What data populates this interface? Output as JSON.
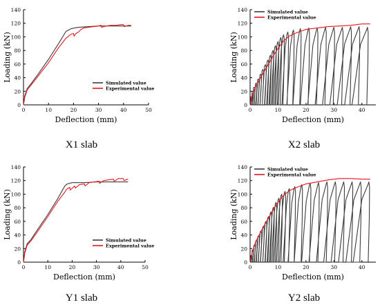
{
  "colors": {
    "simulated": "#3a3a3a",
    "experimental": "#e8141c",
    "axis": "#000000"
  },
  "captions": [
    "X1 slab",
    "X2 slab",
    "Y1 slab",
    "Y2 slab"
  ],
  "chart_data": [
    {
      "type": "line",
      "caption": "X1 slab",
      "xlabel": "Deflection (mm)",
      "ylabel": "Loading (kN)",
      "xlim": [
        0,
        50
      ],
      "ylim": [
        0,
        140
      ],
      "xticks": [
        "0",
        "10",
        "20",
        "30",
        "40",
        "50"
      ],
      "yticks": [
        "0",
        "20",
        "40",
        "60",
        "80",
        "100",
        "120",
        "140"
      ],
      "legend_position": "lower-right",
      "series": [
        {
          "name": "Simulated value",
          "x": [
            0,
            0.5,
            1.5,
            3,
            6,
            10,
            14,
            17,
            19,
            22,
            26,
            30,
            35,
            40,
            43
          ],
          "y": [
            0,
            13,
            24,
            31,
            46,
            67,
            90,
            108,
            112,
            114,
            115,
            116,
            116,
            116,
            116
          ]
        },
        {
          "name": "Experimental value",
          "x": [
            0,
            0.5,
            1.5,
            3,
            6,
            10,
            14,
            17,
            18,
            19,
            20,
            20.2,
            21,
            22,
            23,
            24,
            26,
            28,
            30,
            31,
            31.2,
            33,
            35,
            37,
            39,
            40,
            40.3,
            42,
            43
          ],
          "y": [
            0,
            11,
            22,
            29,
            43,
            62,
            84,
            98,
            101,
            104,
            105,
            101,
            105,
            107,
            111,
            113,
            114,
            115,
            116,
            117,
            114,
            116,
            117,
            117,
            118,
            118,
            115,
            117,
            117
          ]
        }
      ]
    },
    {
      "type": "line",
      "caption": "X2 slab",
      "xlabel": "Deflection (mm)",
      "ylabel": "Loading (kN)",
      "xlim": [
        0,
        45
      ],
      "ylim": [
        0,
        140
      ],
      "xticks": [
        "0",
        "10",
        "20",
        "30",
        "40"
      ],
      "yticks": [
        "0",
        "20",
        "40",
        "60",
        "80",
        "100",
        "120",
        "140"
      ],
      "legend_position": "top-left",
      "series": [
        {
          "name": "Simulated value",
          "cycle_peaks": [
            [
              0.5,
              12
            ],
            [
              1,
              20
            ],
            [
              1.5,
              26
            ],
            [
              2.2,
              32
            ],
            [
              3,
              38
            ],
            [
              3.8,
              45
            ],
            [
              4.6,
              52
            ],
            [
              5.5,
              59
            ],
            [
              6.4,
              66
            ],
            [
              7.3,
              73
            ],
            [
              8.2,
              80
            ],
            [
              9.1,
              87
            ],
            [
              10,
              93
            ],
            [
              11,
              99
            ],
            [
              12,
              103
            ],
            [
              13.5,
              107
            ],
            [
              15.5,
              110
            ],
            [
              18,
              112
            ],
            [
              21,
              113
            ],
            [
              24,
              113
            ],
            [
              27,
              114
            ],
            [
              30,
              114
            ],
            [
              33,
              114
            ],
            [
              36,
              115
            ],
            [
              39,
              115
            ],
            [
              42,
              114
            ]
          ]
        },
        {
          "name": "Experimental value",
          "x": [
            0,
            1,
            2,
            4,
            6,
            8,
            10,
            12,
            14,
            16,
            18,
            20,
            24,
            28,
            32,
            36,
            40,
            43
          ],
          "y": [
            0,
            16,
            27,
            42,
            56,
            70,
            83,
            94,
            101,
            105,
            108,
            111,
            113,
            115,
            116,
            117,
            119,
            119
          ]
        }
      ]
    },
    {
      "type": "line",
      "caption": "Y1 slab",
      "xlabel": "Deflection (mm)",
      "ylabel": "Loading (kN)",
      "xlim": [
        0,
        50
      ],
      "ylim": [
        0,
        140
      ],
      "xticks": [
        "0",
        "10",
        "20",
        "30",
        "40",
        "50"
      ],
      "yticks": [
        "0",
        "20",
        "40",
        "60",
        "80",
        "100",
        "120",
        "140"
      ],
      "legend_position": "lower-right",
      "series": [
        {
          "name": "Simulated value",
          "x": [
            0,
            0.5,
            1.5,
            3,
            6,
            10,
            14,
            17,
            18,
            20,
            25,
            30,
            35,
            40,
            43
          ],
          "y": [
            0,
            15,
            27,
            33,
            49,
            70,
            93,
            112,
            115,
            117,
            117,
            118,
            118,
            118,
            118
          ]
        },
        {
          "name": "Experimental value",
          "x": [
            0,
            0.5,
            1.5,
            3,
            6,
            10,
            14,
            17,
            17.5,
            18,
            19,
            19.2,
            21,
            21.3,
            23,
            25,
            25.3,
            27,
            29,
            31,
            31.3,
            33,
            35,
            37,
            37.3,
            39,
            41,
            41.3,
            43
          ],
          "y": [
            0,
            13,
            25,
            31,
            46,
            67,
            89,
            103,
            106,
            108,
            110,
            106,
            112,
            109,
            114,
            115,
            112,
            117,
            118,
            119,
            116,
            120,
            121,
            122,
            119,
            123,
            123,
            120,
            122
          ]
        }
      ]
    },
    {
      "type": "line",
      "caption": "Y2 slab",
      "xlabel": "Deflection (mm)",
      "ylabel": "Loading (kN)",
      "xlim": [
        0,
        45
      ],
      "ylim": [
        0,
        140
      ],
      "xticks": [
        "0",
        "10",
        "20",
        "30",
        "40"
      ],
      "yticks": [
        "0",
        "20",
        "40",
        "60",
        "80",
        "100",
        "120",
        "140"
      ],
      "legend_position": "top-left",
      "series": [
        {
          "name": "Simulated value",
          "cycle_peaks": [
            [
              0.5,
              10
            ],
            [
              1,
              18
            ],
            [
              1.6,
              25
            ],
            [
              2.3,
              32
            ],
            [
              3.1,
              39
            ],
            [
              3.9,
              46
            ],
            [
              4.8,
              53
            ],
            [
              5.7,
              60
            ],
            [
              6.6,
              67
            ],
            [
              7.5,
              74
            ],
            [
              8.4,
              81
            ],
            [
              9.3,
              88
            ],
            [
              10.3,
              94
            ],
            [
              11.3,
              100
            ],
            [
              12.5,
              104
            ],
            [
              14,
              108
            ],
            [
              16,
              111
            ],
            [
              18.5,
              114
            ],
            [
              21.5,
              116
            ],
            [
              24.5,
              117
            ],
            [
              27.5,
              118
            ],
            [
              30.5,
              118
            ],
            [
              33.5,
              118
            ],
            [
              36.5,
              118
            ],
            [
              39.5,
              118
            ],
            [
              42.5,
              118
            ]
          ]
        },
        {
          "name": "Experimental value",
          "x": [
            0,
            1,
            2,
            4,
            6,
            8,
            10,
            12,
            14,
            16,
            18,
            20,
            24,
            28,
            32,
            36,
            40,
            43
          ],
          "y": [
            0,
            18,
            30,
            46,
            61,
            75,
            88,
            98,
            105,
            109,
            112,
            115,
            118,
            121,
            123,
            123,
            122,
            122
          ]
        }
      ]
    }
  ]
}
